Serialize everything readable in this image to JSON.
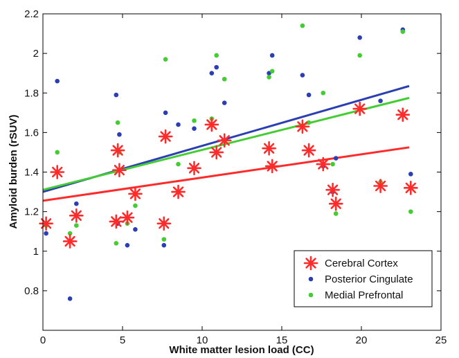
{
  "chart_data": {
    "type": "scatter",
    "xlabel": "White matter lesion load (CC)",
    "ylabel": "Amyloid burden (rSUV)",
    "xlim": [
      0,
      25
    ],
    "ylim": [
      0.6,
      2.2
    ],
    "xticks": [
      0,
      5,
      10,
      15,
      20,
      25
    ],
    "xtick_labels": [
      "0",
      "5",
      "10",
      "15",
      "20",
      "25"
    ],
    "yticks": [
      0.8,
      1.0,
      1.2,
      1.4,
      1.6,
      1.8,
      2.0,
      2.2
    ],
    "ytick_labels": [
      "0.8",
      "1",
      "1.2",
      "1.4",
      "1.6",
      "1.8",
      "2",
      "2.2"
    ],
    "grid": false,
    "legend_position": "bottom-right",
    "series": [
      {
        "name": "Cerebral Cortex",
        "color": "#ff2a2a",
        "marker": "asterisk",
        "x": [
          0.2,
          0.9,
          1.7,
          2.1,
          4.6,
          4.7,
          4.8,
          5.3,
          5.8,
          7.6,
          7.7,
          8.5,
          9.5,
          10.6,
          10.9,
          11.4,
          14.2,
          14.4,
          16.3,
          16.7,
          17.6,
          18.2,
          18.4,
          19.9,
          21.2,
          22.6,
          23.1
        ],
        "y": [
          1.14,
          1.4,
          1.05,
          1.18,
          1.15,
          1.51,
          1.41,
          1.17,
          1.29,
          1.14,
          1.58,
          1.3,
          1.42,
          1.64,
          1.5,
          1.56,
          1.52,
          1.43,
          1.63,
          1.51,
          1.44,
          1.31,
          1.24,
          1.72,
          1.33,
          1.69,
          1.32
        ],
        "fit": {
          "x": [
            0,
            23
          ],
          "y": [
            1.255,
            1.525
          ]
        }
      },
      {
        "name": "Posterior Cingulate",
        "color": "#2b3fb3",
        "marker": "dot",
        "x": [
          0.2,
          0.9,
          1.7,
          2.1,
          4.6,
          4.7,
          4.8,
          5.3,
          5.8,
          7.6,
          7.7,
          8.5,
          9.5,
          10.6,
          10.9,
          11.4,
          14.2,
          14.4,
          16.3,
          16.7,
          17.6,
          18.2,
          18.4,
          19.9,
          21.2,
          22.6,
          23.1
        ],
        "y": [
          1.09,
          1.86,
          0.76,
          1.24,
          1.79,
          1.14,
          1.59,
          1.03,
          1.11,
          1.03,
          1.7,
          1.64,
          1.62,
          1.9,
          1.93,
          1.75,
          1.9,
          1.99,
          1.89,
          1.79,
          1.43,
          1.3,
          1.47,
          2.08,
          1.76,
          2.12,
          1.39
        ],
        "fit": {
          "x": [
            0,
            23
          ],
          "y": [
            1.3,
            1.835
          ]
        }
      },
      {
        "name": "Medial Prefrontal",
        "color": "#44cc33",
        "marker": "dot",
        "x": [
          0.2,
          0.9,
          1.7,
          2.1,
          4.6,
          4.7,
          4.8,
          5.3,
          5.8,
          7.6,
          7.7,
          8.5,
          9.5,
          10.6,
          10.9,
          11.4,
          14.2,
          14.4,
          16.3,
          16.7,
          17.6,
          18.2,
          18.4,
          19.9,
          21.2,
          22.6,
          23.1
        ],
        "y": [
          1.13,
          1.5,
          1.09,
          1.13,
          1.04,
          1.65,
          1.5,
          1.14,
          1.23,
          1.06,
          1.97,
          1.44,
          1.66,
          1.67,
          1.99,
          1.87,
          1.88,
          1.91,
          2.14,
          1.65,
          1.8,
          1.44,
          1.19,
          1.99,
          1.35,
          2.11,
          1.2
        ],
        "fit": {
          "x": [
            0,
            23
          ],
          "y": [
            1.31,
            1.775
          ]
        }
      }
    ]
  }
}
